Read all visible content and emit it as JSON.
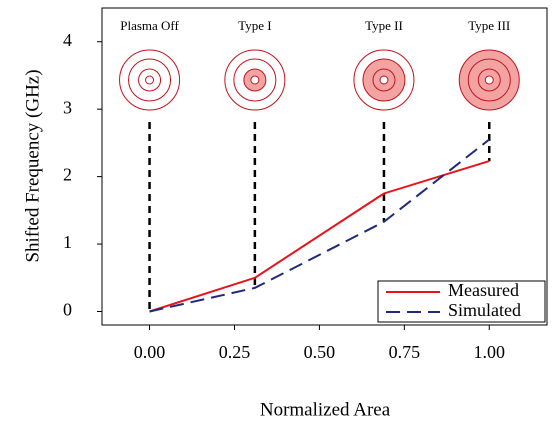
{
  "chart_data": {
    "type": "line",
    "x_label": "Normalized Area",
    "y_label": "Shifted Frequency (GHz)",
    "x": [
      0,
      0.31,
      0.69,
      1.0
    ],
    "series": [
      {
        "name": "Measured",
        "color": "#e8141c",
        "dash": "solid",
        "values": [
          0,
          0.5,
          1.75,
          2.23
        ]
      },
      {
        "name": "Simulated",
        "color": "#1f2a7a",
        "dash": "dashed",
        "values": [
          0,
          0.35,
          1.33,
          2.55
        ]
      }
    ],
    "annotations": [
      {
        "label": "Plasma Off",
        "x": 0
      },
      {
        "label": "Type I",
        "x": 0.31
      },
      {
        "label": "Type II",
        "x": 0.69
      },
      {
        "label": "Type III",
        "x": 1.0
      }
    ],
    "xlim": [
      -0.14,
      1.17
    ],
    "ylim": [
      -0.2,
      4.5
    ],
    "xticks": [
      {
        "value": 0,
        "label": "0.00"
      },
      {
        "value": 0.25,
        "label": "0.25"
      },
      {
        "value": 0.5,
        "label": "0.50"
      },
      {
        "value": 0.75,
        "label": "0.75"
      },
      {
        "value": 1.0,
        "label": "1.00"
      }
    ],
    "yticks": [
      0,
      1,
      2,
      3,
      4
    ],
    "legend": "lower right",
    "grid": false
  }
}
